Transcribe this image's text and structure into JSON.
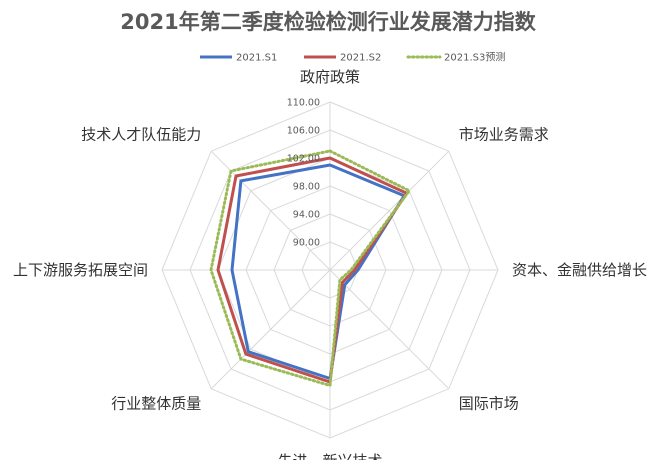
{
  "chart_data": {
    "type": "radar",
    "title": "2021年第二季度检验检测行业发展潜力指数",
    "categories": [
      "政府政策",
      "市场业务需求",
      "资本、金融供给增长",
      "国际市场",
      "先进、新兴技术",
      "行业整体质量",
      "上下游服务拓展空间",
      "技术人才队伍能力"
    ],
    "rlim": [
      86,
      110
    ],
    "ticks": [
      "90.00",
      "94.00",
      "98.00",
      "102.00",
      "106.00",
      "110.00"
    ],
    "tick_values": [
      90,
      94,
      98,
      102,
      106,
      110
    ],
    "legend": "top",
    "grid": true,
    "series": [
      {
        "name": "2021.S1",
        "color": "#4472c4",
        "style": "solid",
        "values": [
          101.0,
          101.0,
          90.0,
          89.0,
          101.5,
          102.5,
          100.0,
          104.0
        ]
      },
      {
        "name": "2021.S2",
        "color": "#c0504d",
        "style": "solid",
        "values": [
          102.0,
          101.5,
          89.5,
          88.5,
          102.0,
          103.0,
          102.0,
          105.0
        ]
      },
      {
        "name": "2021.S3预测",
        "color": "#9bbb59",
        "style": "dotted",
        "values": [
          103.0,
          102.0,
          89.0,
          88.0,
          102.5,
          104.0,
          103.0,
          106.0
        ]
      }
    ]
  }
}
